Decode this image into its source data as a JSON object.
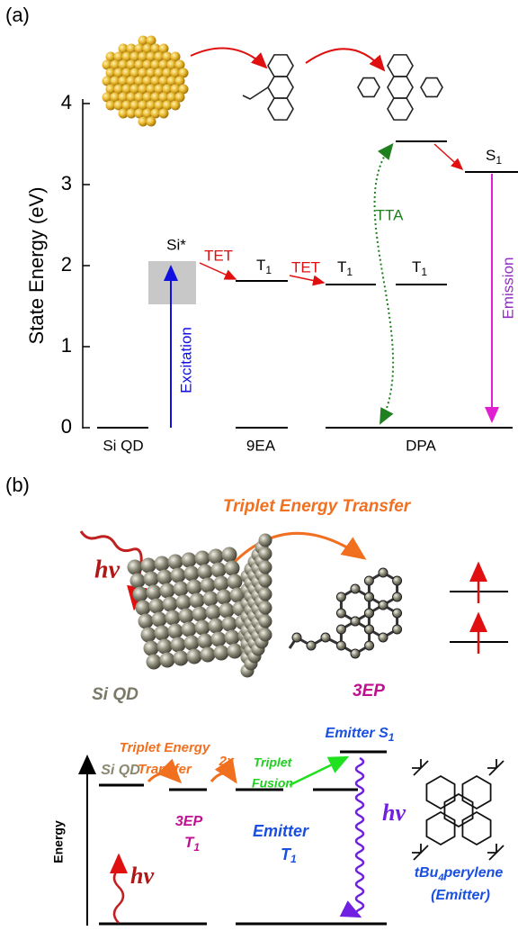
{
  "panel_a": {
    "label": "(a)",
    "y_axis": {
      "title": "State Energy (eV)",
      "ticks": [
        "0",
        "1",
        "2",
        "3",
        "4"
      ]
    },
    "x_labels": [
      "Si QD",
      "9EA",
      "DPA"
    ],
    "si_star": "Si*",
    "tet": [
      "TET",
      "TET"
    ],
    "t1_labels": [
      {
        "main": "T",
        "sub": "1"
      },
      {
        "main": "T",
        "sub": "1"
      },
      {
        "main": "T",
        "sub": "1"
      }
    ],
    "s1_label": {
      "main": "S",
      "sub": "1"
    },
    "excitation": "Excitation",
    "tta": "TTA",
    "emission": "Emission"
  },
  "panel_b": {
    "label": "(b)",
    "transfer_title": "Triplet Energy Transfer",
    "hv": "hν",
    "qd_label": "Si QD",
    "molecule": "3EP",
    "diagram": {
      "energy_axis": "Energy",
      "qd_level": "Si QD",
      "transfer": [
        "Triplet Energy",
        "Transfer"
      ],
      "times": "2x",
      "sensitizer": {
        "name": "3EP",
        "state": {
          "main": "T",
          "sub": "1"
        }
      },
      "emitter_t1": {
        "name": "Emitter",
        "state": {
          "main": "T",
          "sub": "1"
        }
      },
      "fusion": [
        "Triplet",
        "Fusion"
      ],
      "emitter_s1": {
        "main": "Emitter S",
        "sub": "1"
      },
      "hv": "hν",
      "emitter_name": {
        "main": "tBu",
        "sub": "4",
        "rest": "perylene"
      },
      "emitter_role": "(Emitter)"
    }
  }
}
